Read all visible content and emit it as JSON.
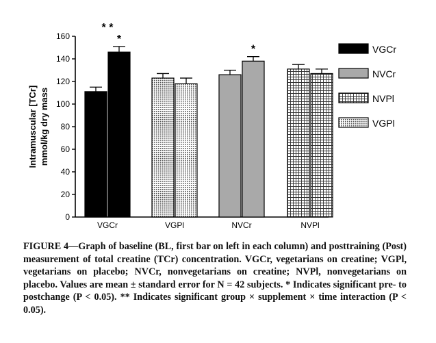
{
  "chart_data": {
    "type": "bar",
    "categories": [
      "VGCr",
      "VGPl",
      "NVCr",
      "NVPl"
    ],
    "series": [
      {
        "name": "BL",
        "values": [
          111,
          123,
          126,
          131
        ],
        "errors": [
          4,
          4,
          4,
          4
        ]
      },
      {
        "name": "Post",
        "values": [
          146,
          118,
          138,
          127
        ],
        "errors": [
          5,
          5,
          4,
          4
        ]
      }
    ],
    "category_fills": {
      "VGCr": "#000000",
      "VGPl": "dots",
      "NVCr": "#a9a9a9",
      "NVPl": "grid"
    },
    "annotations": [
      {
        "category": "VGCr",
        "series": "Post",
        "text": "*"
      },
      {
        "category": "VGCr",
        "text": "* *"
      },
      {
        "category": "NVCr",
        "series": "Post",
        "text": "*"
      }
    ],
    "title": "",
    "xlabel": "",
    "ylabel": [
      "Intramuscular [TCr]",
      "mmol/kg dry mass"
    ],
    "ylim": [
      0,
      160
    ],
    "yticks": [
      0,
      20,
      40,
      60,
      80,
      100,
      120,
      140,
      160
    ],
    "grid": false,
    "legend": {
      "placement": "right",
      "entries": [
        {
          "label": "VGCr",
          "fill": "#000000"
        },
        {
          "label": "NVCr",
          "fill": "#a9a9a9"
        },
        {
          "label": "NVPl",
          "fill": "grid"
        },
        {
          "label": "VGPl",
          "fill": "dots"
        }
      ]
    }
  },
  "caption": "FIGURE 4—Graph of baseline (BL, first bar on left in each column) and posttraining (Post) measurement of total creatine (TCr) concentration. VGCr, vegetarians on creatine; VGPl, vegetarians on placebo; NVCr, nonvegetarians on creatine; NVPl, nonvegetarians on placebo. Values are mean ± standard error for N = 42 subjects. * Indicates significant pre- to postchange (P < 0.05). ** Indicates significant group × supplement × time interaction (P < 0.05)."
}
